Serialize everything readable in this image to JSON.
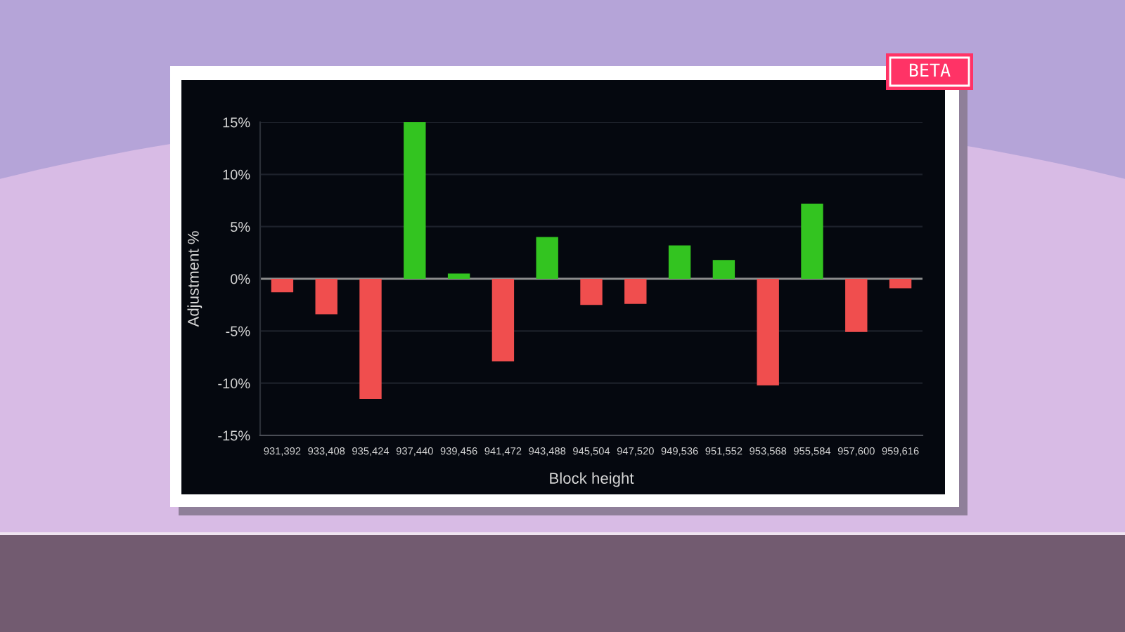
{
  "chart_data": {
    "type": "bar",
    "xlabel": "Block height",
    "ylabel": "Adjustment %",
    "annotations": [
      "BETA"
    ],
    "categories": [
      "931,392",
      "933,408",
      "935,424",
      "937,440",
      "939,456",
      "941,472",
      "943,488",
      "945,504",
      "947,520",
      "949,536",
      "951,552",
      "953,568",
      "955,584",
      "957,600",
      "959,616"
    ],
    "values": [
      -1.3,
      -3.4,
      -11.5,
      15.0,
      0.5,
      -7.9,
      4.0,
      -2.5,
      -2.4,
      3.2,
      1.8,
      -10.2,
      7.2,
      -5.1,
      -0.9
    ],
    "colors": [
      "#f04e4e",
      "#f04e4e",
      "#f04e4e",
      "#33c420",
      "#33c420",
      "#f04e4e",
      "#33c420",
      "#f04e4e",
      "#f04e4e",
      "#33c420",
      "#33c420",
      "#f04e4e",
      "#33c420",
      "#f04e4e",
      "#f04e4e"
    ],
    "ylim": [
      -15,
      15
    ],
    "yticks": [
      {
        "value": -15,
        "label": "-15%"
      },
      {
        "value": -10,
        "label": "-10%"
      },
      {
        "value": -5,
        "label": "-5%"
      },
      {
        "value": 0,
        "label": "0%"
      },
      {
        "value": 5,
        "label": "5%"
      },
      {
        "value": 10,
        "label": "10%"
      },
      {
        "value": 15,
        "label": "15%"
      }
    ],
    "grid": "y",
    "ref_lines": [
      {
        "axis": "y",
        "value": 0,
        "color": "#8c8c8c"
      }
    ]
  }
}
